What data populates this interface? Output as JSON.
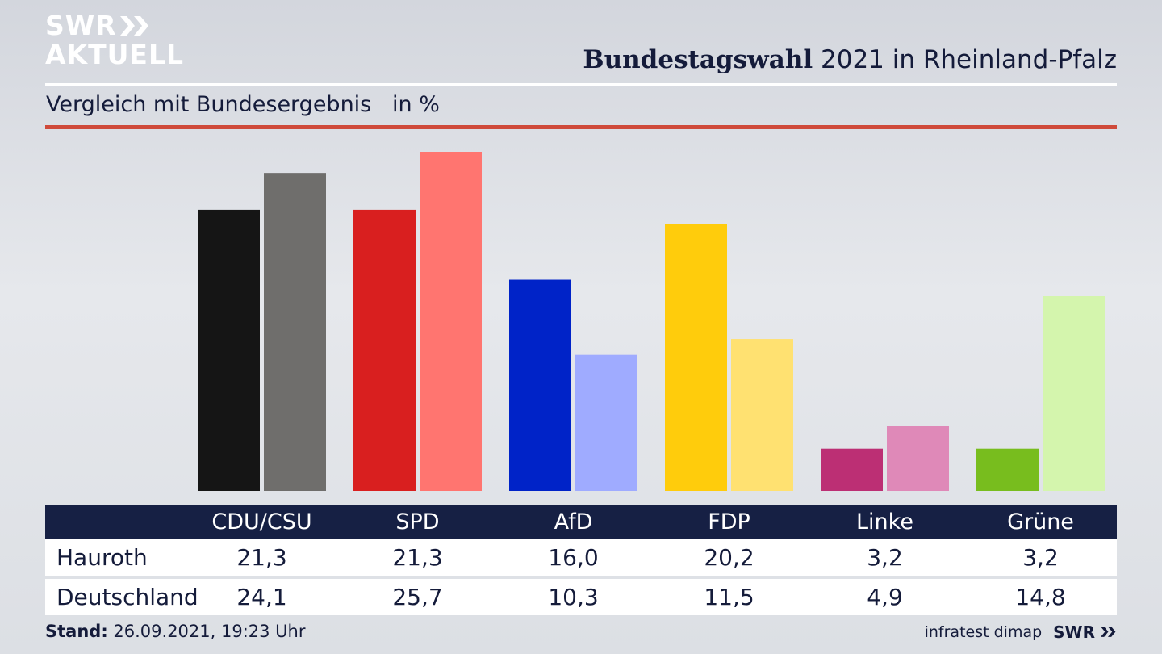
{
  "brand": {
    "line1": "SWR",
    "line2": "AKTUELL",
    "footer_brand": "SWR"
  },
  "header": {
    "title_bold": "Bundestagswahl",
    "title_rest": " 2021 in Rheinland-Pfalz"
  },
  "subtitle": "Vergleich mit Bundesergebnis   in %",
  "footer": {
    "stand_label": "Stand:",
    "stand_value": " 26.09.2021, 19:23 Uhr",
    "source": "infratest dimap"
  },
  "colors": {
    "accent_red": "#cf4a3a",
    "table_header_bg": "#162044",
    "text": "#141b3a"
  },
  "chart_data": {
    "type": "bar",
    "categories": [
      "CDU/CSU",
      "SPD",
      "AfD",
      "FDP",
      "Linke",
      "Grüne"
    ],
    "series": [
      {
        "name": "Hauroth",
        "values": [
          21.3,
          21.3,
          16.0,
          20.2,
          3.2,
          3.2
        ],
        "colors": [
          "#151515",
          "#d91f1f",
          "#0023c8",
          "#ffcc0c",
          "#bc2f74",
          "#78bd1e"
        ]
      },
      {
        "name": "Deutschland",
        "values": [
          24.1,
          25.7,
          10.3,
          11.5,
          4.9,
          14.8
        ],
        "colors": [
          "#6f6e6c",
          "#ff7570",
          "#9fabff",
          "#ffe171",
          "#df89b8",
          "#d4f5ad"
        ]
      }
    ],
    "value_labels": [
      [
        "21,3",
        "21,3",
        "16,0",
        "20,2",
        "3,2",
        "3,2"
      ],
      [
        "24,1",
        "25,7",
        "10,3",
        "11,5",
        "4,9",
        "14,8"
      ]
    ],
    "ylim": [
      0,
      25.7
    ],
    "grid": false
  }
}
